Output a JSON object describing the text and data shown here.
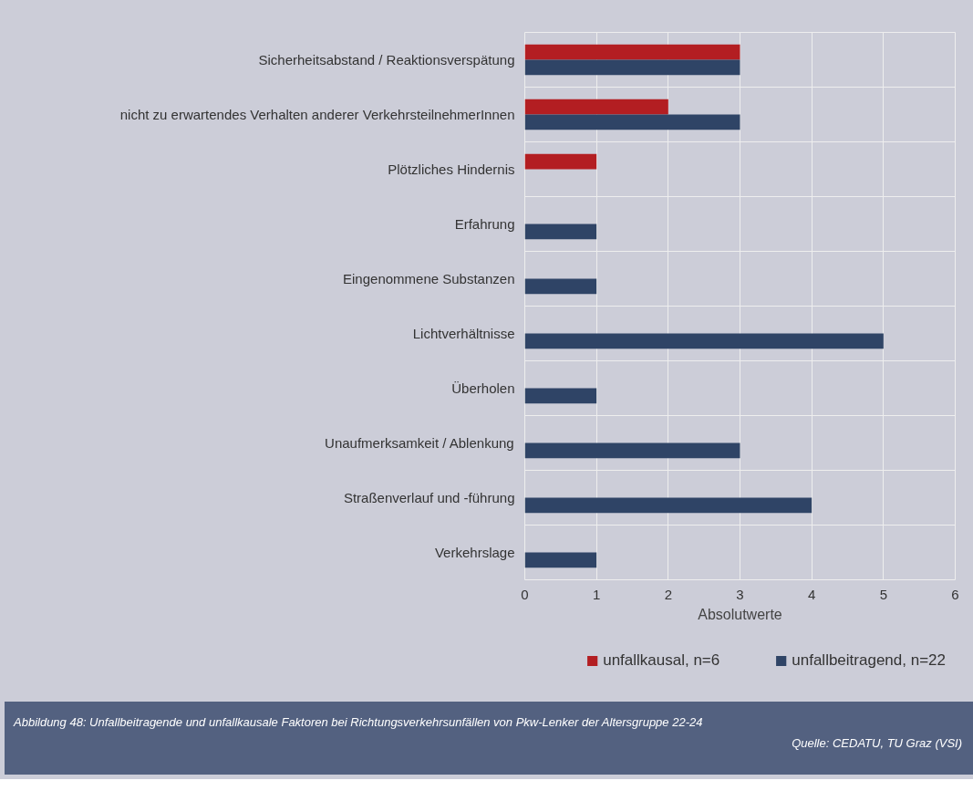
{
  "chart_data": {
    "type": "bar",
    "orientation": "horizontal",
    "categories": [
      "Sicherheitsabstand / Reaktionsverspätung",
      "nicht zu erwartendes Verhalten anderer VerkehrsteilnehmerInnen",
      "Plötzliches Hindernis",
      "Erfahrung",
      "Eingenommene Substanzen",
      "Lichtverhältnisse",
      "Überholen",
      "Unaufmerksamkeit / Ablenkung",
      "Straßenverlauf und -führung",
      "Verkehrslage"
    ],
    "series": [
      {
        "name": "unfallkausal, n=6",
        "color": "#b31e22",
        "values": [
          3,
          2,
          1,
          0,
          0,
          0,
          0,
          0,
          0,
          0
        ]
      },
      {
        "name": "unfallbeitragend, n=22",
        "color": "#2f4466",
        "values": [
          3,
          3,
          0,
          1,
          1,
          5,
          1,
          3,
          4,
          1
        ]
      }
    ],
    "xlabel": "Absolutwerte",
    "xlim": [
      0,
      6
    ],
    "xticks": [
      0,
      1,
      2,
      3,
      4,
      5,
      6
    ],
    "grid": true,
    "legend": "bottom right",
    "annotations": [
      "Abbildung 48: Unfallbeitragende und unfallkausale Faktoren bei Richtungsverkehrsunfällen von Pkw-Lenker der Altersgruppe 22-24",
      "Quelle: CEDATU, TU Graz (VSI)"
    ]
  }
}
